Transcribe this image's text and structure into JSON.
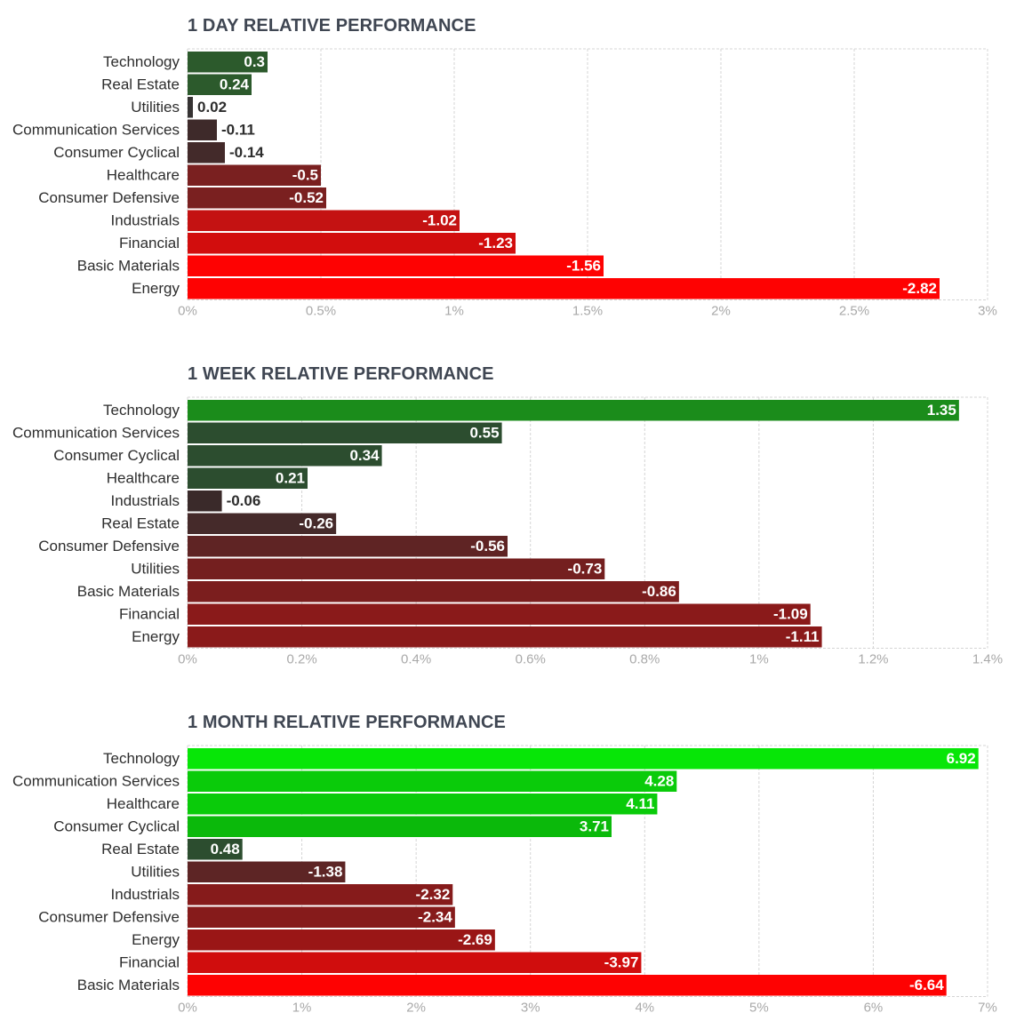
{
  "chart_data": [
    {
      "type": "bar",
      "title": "1 DAY RELATIVE PERFORMANCE",
      "categories": [
        "Technology",
        "Real Estate",
        "Utilities",
        "Communication Services",
        "Consumer Cyclical",
        "Healthcare",
        "Consumer Defensive",
        "Industrials",
        "Financial",
        "Basic Materials",
        "Energy"
      ],
      "values": [
        0.3,
        0.24,
        0.02,
        -0.11,
        -0.14,
        -0.5,
        -0.52,
        -1.02,
        -1.23,
        -1.56,
        -2.82
      ],
      "value_labels": [
        "0.3",
        "0.24",
        "0.02",
        "-0.11",
        "-0.14",
        "-0.5",
        "-0.52",
        "-1.02",
        "-1.23",
        "-1.56",
        "-2.82"
      ],
      "colors": [
        "#2c5a2c",
        "#2c5a2c",
        "#363333",
        "#3e2a2a",
        "#432a2a",
        "#7a2020",
        "#7a2020",
        "#c41212",
        "#d20d0d",
        "#fe0202",
        "#fe0202"
      ],
      "xlim": [
        0,
        3
      ],
      "xticks": [
        "0%",
        "0.5%",
        "1%",
        "1.5%",
        "2%",
        "2.5%",
        "3%"
      ],
      "orientation": "horizontal",
      "bar_length": "absolute value"
    },
    {
      "type": "bar",
      "title": "1 WEEK RELATIVE PERFORMANCE",
      "categories": [
        "Technology",
        "Communication Services",
        "Consumer Cyclical",
        "Healthcare",
        "Industrials",
        "Real Estate",
        "Consumer Defensive",
        "Utilities",
        "Basic Materials",
        "Financial",
        "Energy"
      ],
      "values": [
        1.35,
        0.55,
        0.34,
        0.21,
        -0.06,
        -0.26,
        -0.56,
        -0.73,
        -0.86,
        -1.09,
        -1.11
      ],
      "value_labels": [
        "1.35",
        "0.55",
        "0.34",
        "0.21",
        "-0.06",
        "-0.26",
        "-0.56",
        "-0.73",
        "-0.86",
        "-1.09",
        "-1.11"
      ],
      "colors": [
        "#1b8c1b",
        "#2c4d2f",
        "#2c4d2f",
        "#2c4d2f",
        "#3a2a2a",
        "#452a2a",
        "#5f2424",
        "#741f1f",
        "#7b1e1e",
        "#8a1a1a",
        "#8a1a1a"
      ],
      "xlim": [
        0,
        1.4
      ],
      "xticks": [
        "0%",
        "0.2%",
        "0.4%",
        "0.6%",
        "0.8%",
        "1%",
        "1.2%",
        "1.4%"
      ],
      "orientation": "horizontal",
      "bar_length": "absolute value"
    },
    {
      "type": "bar",
      "title": "1 MONTH RELATIVE PERFORMANCE",
      "categories": [
        "Technology",
        "Communication Services",
        "Healthcare",
        "Consumer Cyclical",
        "Real Estate",
        "Utilities",
        "Industrials",
        "Consumer Defensive",
        "Energy",
        "Financial",
        "Basic Materials"
      ],
      "values": [
        6.92,
        4.28,
        4.11,
        3.71,
        0.48,
        -1.38,
        -2.32,
        -2.34,
        -2.69,
        -3.97,
        -6.64
      ],
      "value_labels": [
        "6.92",
        "4.28",
        "4.11",
        "3.71",
        "0.48",
        "-1.38",
        "-2.32",
        "-2.34",
        "-2.69",
        "-3.97",
        "-6.64"
      ],
      "colors": [
        "#07e607",
        "#0acb0a",
        "#0acb0a",
        "#0bb90b",
        "#2c4d2f",
        "#5d2525",
        "#861b1b",
        "#861b1b",
        "#9a1616",
        "#d00d0d",
        "#fe0202"
      ],
      "xlim": [
        0,
        7
      ],
      "xticks": [
        "0%",
        "1%",
        "2%",
        "3%",
        "4%",
        "5%",
        "6%",
        "7%"
      ],
      "orientation": "horizontal",
      "bar_length": "absolute value"
    }
  ]
}
